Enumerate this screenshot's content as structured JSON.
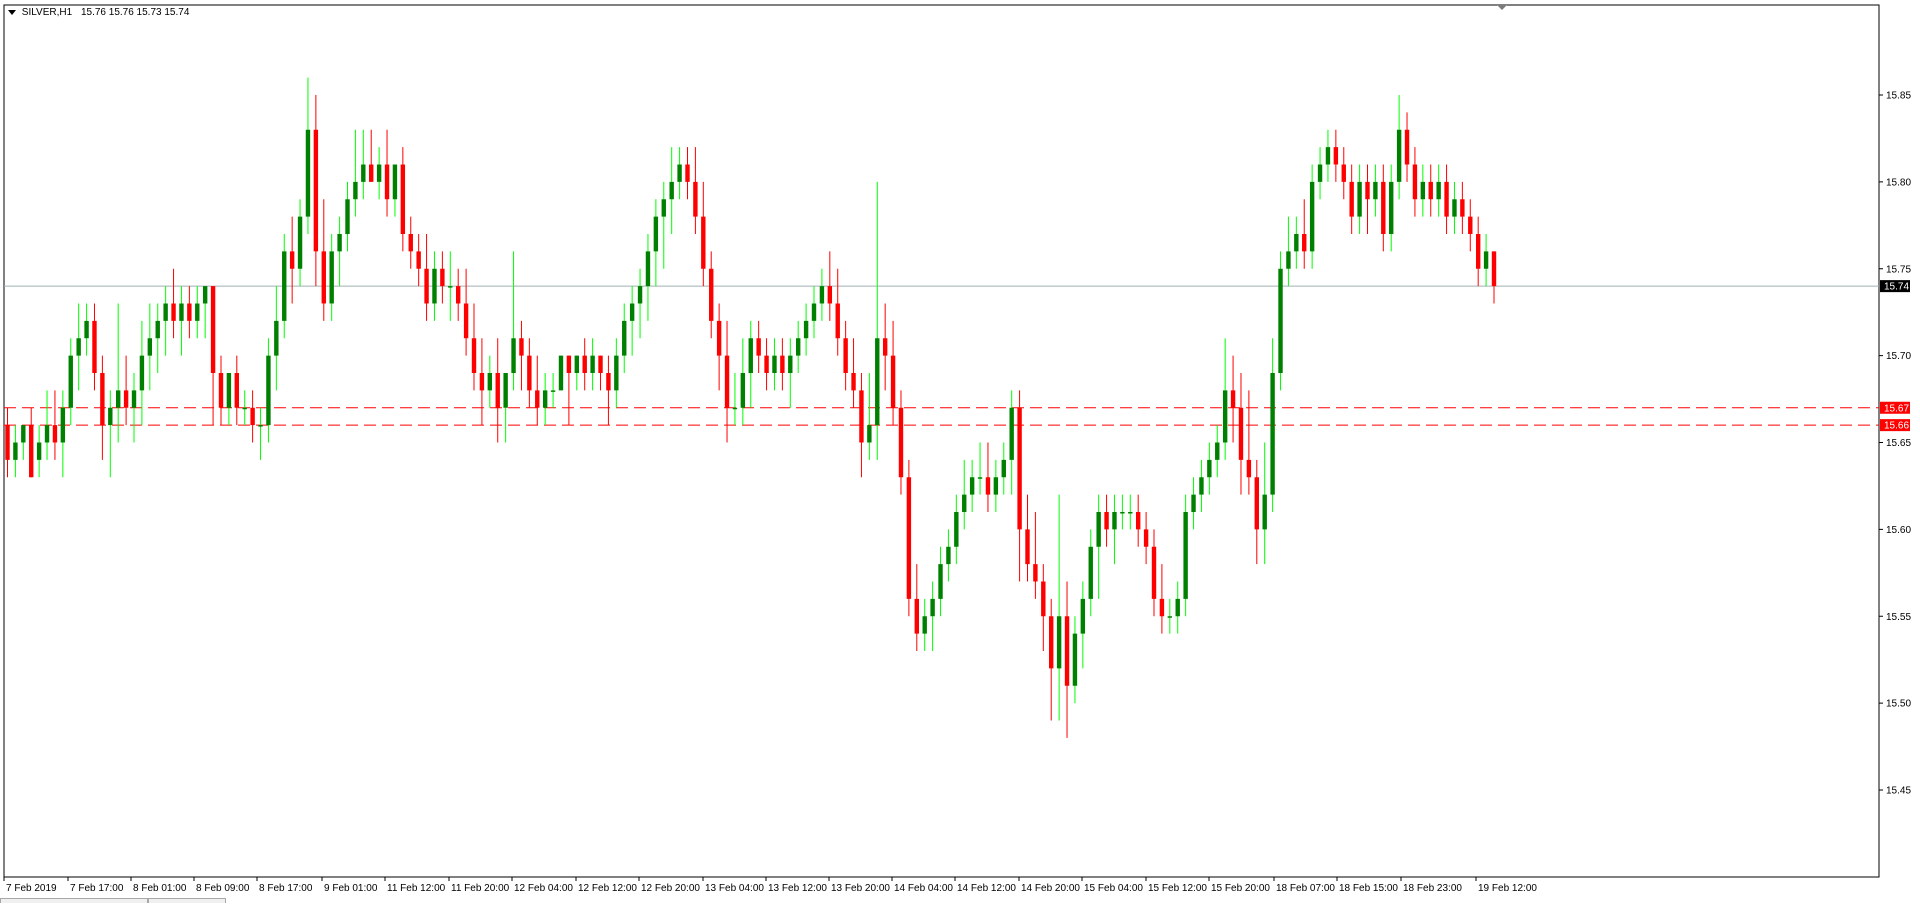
{
  "header": {
    "symbol_timeframe": "SILVER,H1",
    "ohlc": "15.76 15.76 15.73 15.74"
  },
  "colors": {
    "bull_body": "#008000",
    "bull_wick": "#00ff00",
    "bear_body": "#ff0000",
    "bear_wick": "#ff0000",
    "bid_line": "#a0b0b4",
    "level_line": "#ff0000",
    "bid_tag_bg": "#000000",
    "level_tag_bg": "#ff0000"
  },
  "chart_data": {
    "type": "candlestick",
    "symbol": "SILVER",
    "timeframe": "H1",
    "ylim": [
      15.42,
      15.88
    ],
    "y_ticks": [
      "15.85",
      "15.80",
      "15.75",
      "15.70",
      "15.65",
      "15.60",
      "15.55",
      "15.50",
      "15.45"
    ],
    "x_ticks": [
      "7 Feb 2019",
      "7 Feb 17:00",
      "8 Feb 01:00",
      "8 Feb 09:00",
      "8 Feb 17:00",
      "9 Feb 01:00",
      "11 Feb 12:00",
      "11 Feb 20:00",
      "12 Feb 04:00",
      "12 Feb 12:00",
      "12 Feb 20:00",
      "13 Feb 04:00",
      "13 Feb 12:00",
      "13 Feb 20:00",
      "14 Feb 04:00",
      "14 Feb 12:00",
      "14 Feb 20:00",
      "15 Feb 04:00",
      "15 Feb 12:00",
      "15 Feb 20:00",
      "18 Feb 07:00",
      "18 Feb 15:00",
      "18 Feb 23:00",
      "19 Feb 12:00"
    ],
    "current_price": "15.74",
    "horizontal_levels": [
      "15.67",
      "15.66"
    ],
    "candles_ohlc": [
      [
        15.66,
        15.67,
        15.63,
        15.64
      ],
      [
        15.64,
        15.66,
        15.63,
        15.65
      ],
      [
        15.65,
        15.66,
        15.64,
        15.66
      ],
      [
        15.66,
        15.67,
        15.63,
        15.63
      ],
      [
        15.64,
        15.66,
        15.63,
        15.65
      ],
      [
        15.65,
        15.68,
        15.64,
        15.66
      ],
      [
        15.66,
        15.68,
        15.64,
        15.65
      ],
      [
        15.65,
        15.68,
        15.63,
        15.67
      ],
      [
        15.67,
        15.71,
        15.66,
        15.7
      ],
      [
        15.7,
        15.73,
        15.68,
        15.71
      ],
      [
        15.71,
        15.73,
        15.7,
        15.72
      ],
      [
        15.72,
        15.73,
        15.68,
        15.69
      ],
      [
        15.69,
        15.7,
        15.64,
        15.66
      ],
      [
        15.66,
        15.68,
        15.63,
        15.67
      ],
      [
        15.67,
        15.73,
        15.65,
        15.68
      ],
      [
        15.68,
        15.7,
        15.66,
        15.67
      ],
      [
        15.67,
        15.69,
        15.65,
        15.68
      ],
      [
        15.68,
        15.72,
        15.66,
        15.7
      ],
      [
        15.7,
        15.73,
        15.68,
        15.71
      ],
      [
        15.71,
        15.73,
        15.69,
        15.72
      ],
      [
        15.72,
        15.74,
        15.7,
        15.73
      ],
      [
        15.73,
        15.75,
        15.71,
        15.72
      ],
      [
        15.72,
        15.74,
        15.7,
        15.73
      ],
      [
        15.73,
        15.74,
        15.71,
        15.72
      ],
      [
        15.72,
        15.74,
        15.71,
        15.73
      ],
      [
        15.73,
        15.74,
        15.71,
        15.74
      ],
      [
        15.74,
        15.74,
        15.66,
        15.69
      ],
      [
        15.69,
        15.7,
        15.66,
        15.67
      ],
      [
        15.67,
        15.69,
        15.66,
        15.69
      ],
      [
        15.69,
        15.7,
        15.66,
        15.67
      ],
      [
        15.67,
        15.68,
        15.66,
        15.67
      ],
      [
        15.67,
        15.68,
        15.65,
        15.66
      ],
      [
        15.66,
        15.67,
        15.64,
        15.66
      ],
      [
        15.66,
        15.71,
        15.65,
        15.7
      ],
      [
        15.7,
        15.74,
        15.68,
        15.72
      ],
      [
        15.72,
        15.77,
        15.71,
        15.76
      ],
      [
        15.76,
        15.78,
        15.73,
        15.75
      ],
      [
        15.75,
        15.79,
        15.74,
        15.78
      ],
      [
        15.78,
        15.86,
        15.77,
        15.83
      ],
      [
        15.83,
        15.85,
        15.74,
        15.76
      ],
      [
        15.76,
        15.79,
        15.72,
        15.73
      ],
      [
        15.73,
        15.77,
        15.72,
        15.76
      ],
      [
        15.76,
        15.78,
        15.74,
        15.77
      ],
      [
        15.77,
        15.8,
        15.76,
        15.79
      ],
      [
        15.79,
        15.83,
        15.78,
        15.8
      ],
      [
        15.8,
        15.83,
        15.79,
        15.81
      ],
      [
        15.81,
        15.83,
        15.8,
        15.8
      ],
      [
        15.8,
        15.82,
        15.79,
        15.81
      ],
      [
        15.81,
        15.83,
        15.78,
        15.79
      ],
      [
        15.79,
        15.81,
        15.78,
        15.81
      ],
      [
        15.81,
        15.82,
        15.76,
        15.77
      ],
      [
        15.77,
        15.78,
        15.75,
        15.76
      ],
      [
        15.76,
        15.77,
        15.74,
        15.75
      ],
      [
        15.75,
        15.77,
        15.72,
        15.73
      ],
      [
        15.73,
        15.76,
        15.72,
        15.75
      ],
      [
        15.75,
        15.76,
        15.73,
        15.74
      ],
      [
        15.74,
        15.76,
        15.72,
        15.74
      ],
      [
        15.74,
        15.75,
        15.72,
        15.73
      ],
      [
        15.73,
        15.75,
        15.7,
        15.71
      ],
      [
        15.71,
        15.73,
        15.68,
        15.69
      ],
      [
        15.69,
        15.71,
        15.66,
        15.68
      ],
      [
        15.68,
        15.7,
        15.67,
        15.69
      ],
      [
        15.69,
        15.71,
        15.65,
        15.67
      ],
      [
        15.67,
        15.69,
        15.65,
        15.69
      ],
      [
        15.69,
        15.76,
        15.68,
        15.71
      ],
      [
        15.71,
        15.72,
        15.68,
        15.7
      ],
      [
        15.7,
        15.71,
        15.67,
        15.68
      ],
      [
        15.68,
        15.7,
        15.66,
        15.67
      ],
      [
        15.67,
        15.69,
        15.66,
        15.68
      ],
      [
        15.68,
        15.69,
        15.67,
        15.68
      ],
      [
        15.68,
        15.7,
        15.68,
        15.7
      ],
      [
        15.7,
        15.7,
        15.66,
        15.69
      ],
      [
        15.69,
        15.7,
        15.68,
        15.7
      ],
      [
        15.7,
        15.71,
        15.68,
        15.69
      ],
      [
        15.69,
        15.71,
        15.68,
        15.7
      ],
      [
        15.7,
        15.7,
        15.68,
        15.69
      ],
      [
        15.69,
        15.7,
        15.66,
        15.68
      ],
      [
        15.68,
        15.71,
        15.67,
        15.7
      ],
      [
        15.7,
        15.73,
        15.69,
        15.72
      ],
      [
        15.72,
        15.74,
        15.7,
        15.73
      ],
      [
        15.73,
        15.75,
        15.71,
        15.74
      ],
      [
        15.74,
        15.77,
        15.72,
        15.76
      ],
      [
        15.76,
        15.79,
        15.74,
        15.78
      ],
      [
        15.78,
        15.8,
        15.75,
        15.79
      ],
      [
        15.79,
        15.82,
        15.77,
        15.8
      ],
      [
        15.8,
        15.82,
        15.79,
        15.81
      ],
      [
        15.81,
        15.82,
        15.79,
        15.8
      ],
      [
        15.8,
        15.82,
        15.77,
        15.78
      ],
      [
        15.78,
        15.8,
        15.74,
        15.75
      ],
      [
        15.75,
        15.76,
        15.71,
        15.72
      ],
      [
        15.72,
        15.73,
        15.68,
        15.7
      ],
      [
        15.7,
        15.72,
        15.65,
        15.67
      ],
      [
        15.67,
        15.69,
        15.66,
        15.67
      ],
      [
        15.67,
        15.71,
        15.66,
        15.69
      ],
      [
        15.69,
        15.72,
        15.67,
        15.71
      ],
      [
        15.71,
        15.72,
        15.69,
        15.7
      ],
      [
        15.7,
        15.71,
        15.68,
        15.69
      ],
      [
        15.69,
        15.71,
        15.68,
        15.7
      ],
      [
        15.7,
        15.71,
        15.68,
        15.69
      ],
      [
        15.69,
        15.71,
        15.67,
        15.7
      ],
      [
        15.7,
        15.72,
        15.69,
        15.71
      ],
      [
        15.71,
        15.73,
        15.7,
        15.72
      ],
      [
        15.72,
        15.74,
        15.71,
        15.73
      ],
      [
        15.73,
        15.75,
        15.72,
        15.74
      ],
      [
        15.74,
        15.76,
        15.72,
        15.73
      ],
      [
        15.73,
        15.75,
        15.7,
        15.71
      ],
      [
        15.71,
        15.72,
        15.68,
        15.69
      ],
      [
        15.69,
        15.71,
        15.67,
        15.68
      ],
      [
        15.68,
        15.69,
        15.63,
        15.65
      ],
      [
        15.65,
        15.69,
        15.64,
        15.66
      ],
      [
        15.66,
        15.8,
        15.64,
        15.71
      ],
      [
        15.71,
        15.73,
        15.68,
        15.7
      ],
      [
        15.7,
        15.72,
        15.66,
        15.67
      ],
      [
        15.67,
        15.68,
        15.62,
        15.63
      ],
      [
        15.63,
        15.64,
        15.55,
        15.56
      ],
      [
        15.56,
        15.58,
        15.53,
        15.54
      ],
      [
        15.54,
        15.56,
        15.53,
        15.55
      ],
      [
        15.55,
        15.57,
        15.53,
        15.56
      ],
      [
        15.56,
        15.59,
        15.55,
        15.58
      ],
      [
        15.58,
        15.6,
        15.57,
        15.59
      ],
      [
        15.59,
        15.62,
        15.58,
        15.61
      ],
      [
        15.61,
        15.64,
        15.6,
        15.62
      ],
      [
        15.62,
        15.64,
        15.61,
        15.63
      ],
      [
        15.63,
        15.65,
        15.62,
        15.63
      ],
      [
        15.63,
        15.65,
        15.61,
        15.62
      ],
      [
        15.62,
        15.64,
        15.61,
        15.63
      ],
      [
        15.63,
        15.65,
        15.62,
        15.64
      ],
      [
        15.64,
        15.68,
        15.62,
        15.67
      ],
      [
        15.67,
        15.68,
        15.57,
        15.6
      ],
      [
        15.6,
        15.62,
        15.57,
        15.58
      ],
      [
        15.58,
        15.61,
        15.56,
        15.57
      ],
      [
        15.57,
        15.58,
        15.53,
        15.55
      ],
      [
        15.55,
        15.56,
        15.49,
        15.52
      ],
      [
        15.52,
        15.62,
        15.49,
        15.55
      ],
      [
        15.55,
        15.57,
        15.48,
        15.51
      ],
      [
        15.51,
        15.55,
        15.5,
        15.54
      ],
      [
        15.54,
        15.57,
        15.52,
        15.56
      ],
      [
        15.56,
        15.6,
        15.55,
        15.59
      ],
      [
        15.59,
        15.62,
        15.56,
        15.61
      ],
      [
        15.61,
        15.62,
        15.59,
        15.6
      ],
      [
        15.6,
        15.62,
        15.58,
        15.61
      ],
      [
        15.61,
        15.62,
        15.6,
        15.61
      ],
      [
        15.61,
        15.62,
        15.6,
        15.61
      ],
      [
        15.61,
        15.62,
        15.59,
        15.6
      ],
      [
        15.6,
        15.61,
        15.58,
        15.59
      ],
      [
        15.59,
        15.6,
        15.55,
        15.56
      ],
      [
        15.56,
        15.58,
        15.54,
        15.55
      ],
      [
        15.55,
        15.56,
        15.54,
        15.55
      ],
      [
        15.55,
        15.57,
        15.54,
        15.56
      ],
      [
        15.56,
        15.62,
        15.55,
        15.61
      ],
      [
        15.61,
        15.63,
        15.6,
        15.62
      ],
      [
        15.62,
        15.64,
        15.61,
        15.63
      ],
      [
        15.63,
        15.65,
        15.62,
        15.64
      ],
      [
        15.64,
        15.66,
        15.63,
        15.65
      ],
      [
        15.65,
        15.71,
        15.64,
        15.68
      ],
      [
        15.68,
        15.7,
        15.65,
        15.67
      ],
      [
        15.67,
        15.69,
        15.62,
        15.64
      ],
      [
        15.64,
        15.68,
        15.62,
        15.63
      ],
      [
        15.63,
        15.64,
        15.58,
        15.6
      ],
      [
        15.6,
        15.65,
        15.58,
        15.62
      ],
      [
        15.62,
        15.71,
        15.61,
        15.69
      ],
      [
        15.69,
        15.76,
        15.68,
        15.75
      ],
      [
        15.75,
        15.78,
        15.74,
        15.76
      ],
      [
        15.76,
        15.78,
        15.75,
        15.77
      ],
      [
        15.77,
        15.79,
        15.75,
        15.76
      ],
      [
        15.76,
        15.81,
        15.75,
        15.8
      ],
      [
        15.8,
        15.82,
        15.79,
        15.81
      ],
      [
        15.81,
        15.83,
        15.8,
        15.82
      ],
      [
        15.82,
        15.83,
        15.8,
        15.81
      ],
      [
        15.81,
        15.82,
        15.79,
        15.8
      ],
      [
        15.8,
        15.81,
        15.77,
        15.78
      ],
      [
        15.78,
        15.81,
        15.77,
        15.8
      ],
      [
        15.8,
        15.81,
        15.77,
        15.79
      ],
      [
        15.79,
        15.81,
        15.78,
        15.8
      ],
      [
        15.8,
        15.81,
        15.76,
        15.77
      ],
      [
        15.77,
        15.81,
        15.76,
        15.8
      ],
      [
        15.8,
        15.85,
        15.79,
        15.83
      ],
      [
        15.83,
        15.84,
        15.8,
        15.81
      ],
      [
        15.81,
        15.82,
        15.78,
        15.79
      ],
      [
        15.79,
        15.81,
        15.78,
        15.8
      ],
      [
        15.8,
        15.81,
        15.78,
        15.79
      ],
      [
        15.79,
        15.81,
        15.78,
        15.8
      ],
      [
        15.8,
        15.81,
        15.77,
        15.78
      ],
      [
        15.78,
        15.8,
        15.77,
        15.79
      ],
      [
        15.79,
        15.8,
        15.77,
        15.78
      ],
      [
        15.78,
        15.79,
        15.76,
        15.77
      ],
      [
        15.77,
        15.78,
        15.74,
        15.75
      ],
      [
        15.75,
        15.77,
        15.74,
        15.76
      ],
      [
        15.76,
        15.76,
        15.73,
        15.74
      ]
    ]
  }
}
